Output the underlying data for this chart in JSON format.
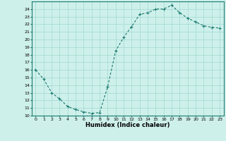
{
  "x": [
    0,
    1,
    2,
    3,
    4,
    5,
    6,
    7,
    8,
    9,
    10,
    11,
    12,
    13,
    14,
    15,
    16,
    17,
    18,
    19,
    20,
    21,
    22,
    23
  ],
  "y": [
    16.0,
    14.8,
    13.0,
    12.2,
    11.2,
    10.8,
    10.5,
    10.3,
    10.4,
    13.8,
    18.5,
    20.3,
    21.7,
    23.3,
    23.5,
    24.0,
    24.0,
    24.5,
    23.5,
    22.8,
    22.3,
    21.8,
    21.6,
    21.5
  ],
  "line_color": "#1a7a6e",
  "marker": "+",
  "markersize": 3,
  "linewidth": 0.8,
  "bg_color": "#cef0eb",
  "grid_color": "#a0d8d0",
  "xlabel": "Humidex (Indice chaleur)",
  "xlabel_fontsize": 6,
  "xlabel_fontweight": "bold",
  "xlim": [
    -0.5,
    23.5
  ],
  "ylim": [
    10,
    25
  ],
  "yticks": [
    10,
    11,
    12,
    13,
    14,
    15,
    16,
    17,
    18,
    19,
    20,
    21,
    22,
    23,
    24
  ],
  "xticks": [
    0,
    1,
    2,
    3,
    4,
    5,
    6,
    7,
    8,
    9,
    10,
    11,
    12,
    13,
    14,
    15,
    16,
    17,
    18,
    19,
    20,
    21,
    22,
    23
  ],
  "tick_fontsize": 4.5,
  "axis_color": "#1a7a6e"
}
